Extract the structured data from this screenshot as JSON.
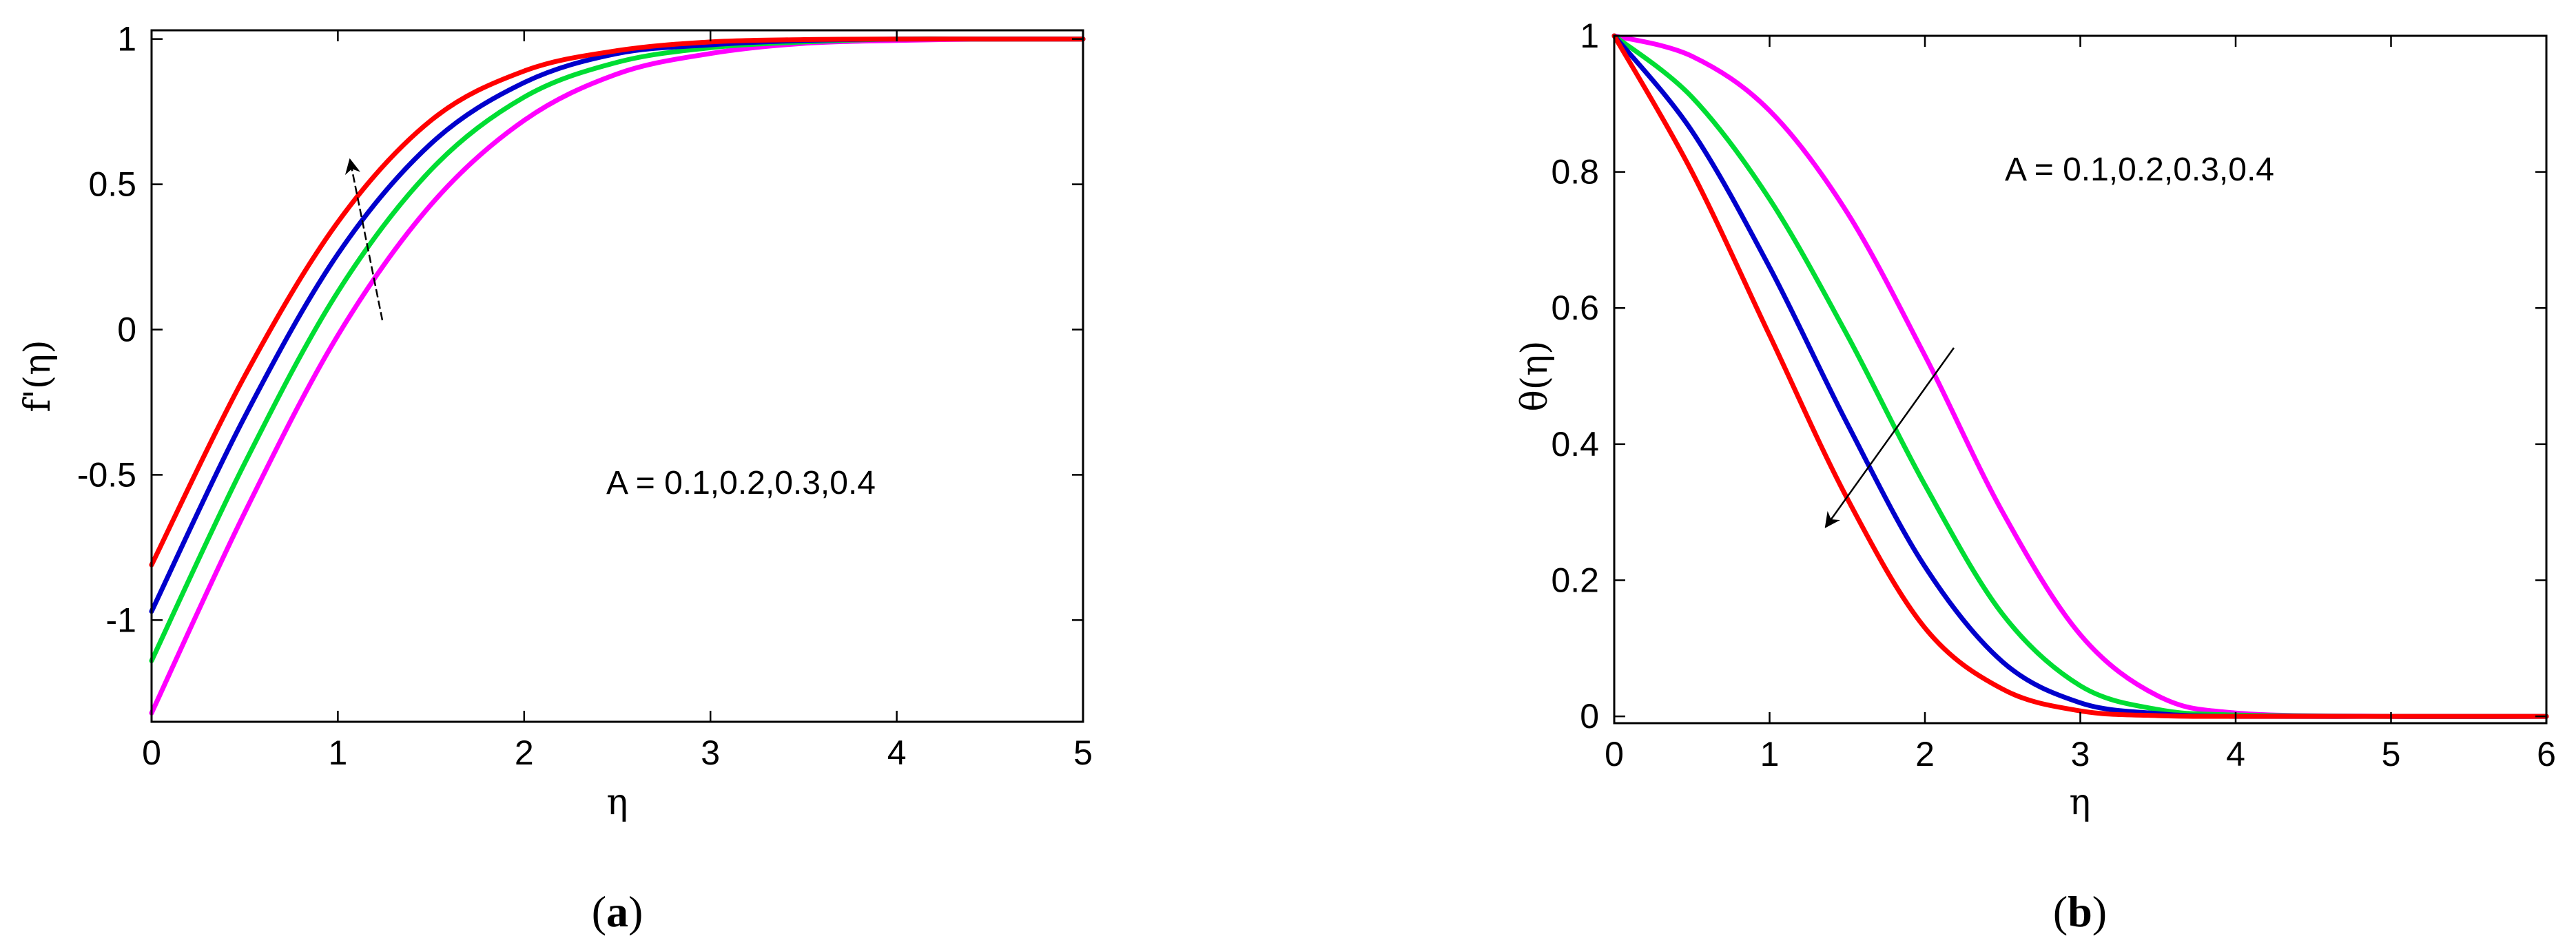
{
  "chart_data": [
    {
      "panel": "a",
      "type": "line",
      "xlabel": "η",
      "ylabel": "f'(η)",
      "xlim": [
        0,
        5
      ],
      "ylim": [
        -1.35,
        1.03
      ],
      "xticks": [
        "0",
        "1",
        "2",
        "3",
        "4",
        "5"
      ],
      "yticks": [
        "-1",
        "-0.5",
        "0",
        "0.5",
        "1"
      ],
      "grid": false,
      "annotation": "A = 0.1,0.2,0.3,0.4",
      "arrow": "increasing A",
      "caption": {
        "open": "(",
        "letter": "a",
        "close": ")"
      },
      "series": [
        {
          "color": "#ff00ff",
          "x": [
            0,
            0.5,
            1,
            1.5,
            2,
            2.5,
            3,
            3.5,
            4,
            4.5,
            5
          ],
          "y": [
            -1.32,
            -0.63,
            -0.02,
            0.43,
            0.72,
            0.88,
            0.95,
            0.985,
            0.995,
            1.0,
            1.0
          ]
        },
        {
          "color": "#00dd33",
          "x": [
            0,
            0.5,
            1,
            1.5,
            2,
            2.5,
            3,
            3.5,
            4,
            4.5,
            5
          ],
          "y": [
            -1.14,
            -0.46,
            0.13,
            0.55,
            0.8,
            0.92,
            0.97,
            0.99,
            1.0,
            1.0,
            1.0
          ]
        },
        {
          "color": "#0000cc",
          "x": [
            0,
            0.5,
            1,
            1.5,
            2,
            2.5,
            3,
            3.5,
            4,
            4.5,
            5
          ],
          "y": [
            -0.97,
            -0.3,
            0.26,
            0.64,
            0.85,
            0.95,
            0.98,
            0.995,
            1.0,
            1.0,
            1.0
          ]
        },
        {
          "color": "#ff0000",
          "x": [
            0,
            0.5,
            1,
            1.5,
            2,
            2.5,
            3,
            3.5,
            4,
            4.5,
            5
          ],
          "y": [
            -0.81,
            -0.16,
            0.37,
            0.72,
            0.89,
            0.96,
            0.99,
            0.998,
            1.0,
            1.0,
            1.0
          ]
        }
      ]
    },
    {
      "panel": "b",
      "type": "line",
      "xlabel": "η",
      "ylabel": "θ(η)",
      "xlim": [
        0,
        6
      ],
      "ylim": [
        -0.01,
        1.0
      ],
      "xticks": [
        "0",
        "1",
        "2",
        "3",
        "4",
        "5",
        "6"
      ],
      "yticks": [
        "0",
        "0.2",
        "0.4",
        "0.6",
        "0.8",
        "1"
      ],
      "grid": false,
      "annotation": "A = 0.1,0.2,0.3,0.4",
      "arrow": "increasing A",
      "caption": {
        "open": "(",
        "letter": "b",
        "close": ")"
      },
      "series": [
        {
          "color": "#ff00ff",
          "x": [
            0,
            0.5,
            1,
            1.5,
            2,
            2.5,
            3,
            3.5,
            4,
            5,
            6
          ],
          "y": [
            1.0,
            0.97,
            0.89,
            0.74,
            0.53,
            0.3,
            0.12,
            0.03,
            0.005,
            0.0,
            0.0
          ]
        },
        {
          "color": "#00dd33",
          "x": [
            0,
            0.5,
            1,
            1.5,
            2,
            2.5,
            3,
            3.5,
            4,
            5,
            6
          ],
          "y": [
            1.0,
            0.91,
            0.76,
            0.56,
            0.34,
            0.15,
            0.045,
            0.01,
            0.002,
            0.0,
            0.0
          ]
        },
        {
          "color": "#0000cc",
          "x": [
            0,
            0.5,
            1,
            1.5,
            2,
            2.5,
            3,
            3.5,
            4,
            5,
            6
          ],
          "y": [
            1.0,
            0.86,
            0.66,
            0.43,
            0.22,
            0.08,
            0.02,
            0.004,
            0.0,
            0.0,
            0.0
          ]
        },
        {
          "color": "#ff0000",
          "x": [
            0,
            0.5,
            1,
            1.5,
            2,
            2.5,
            3,
            3.5,
            4,
            5,
            6
          ],
          "y": [
            1.0,
            0.8,
            0.56,
            0.32,
            0.13,
            0.04,
            0.008,
            0.001,
            0.0,
            0.0,
            0.0
          ]
        }
      ]
    }
  ]
}
